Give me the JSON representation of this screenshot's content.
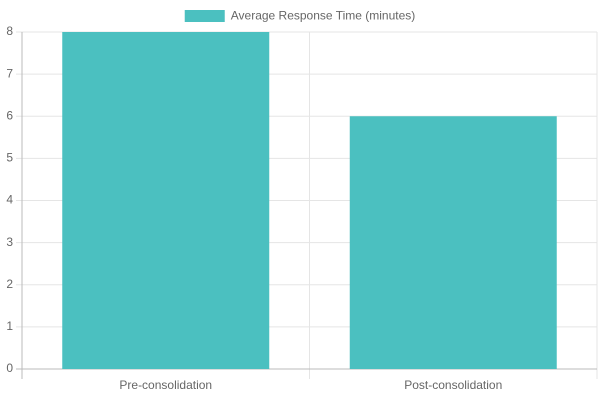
{
  "chart_data": {
    "type": "bar",
    "categories": [
      "Pre-consolidation",
      "Post-consolidation"
    ],
    "series": [
      {
        "name": "Average Response Time (minutes)",
        "color": "#4bc0c0",
        "values": [
          8,
          6
        ]
      }
    ],
    "ylim": [
      0,
      8
    ],
    "yticks": [
      0,
      1,
      2,
      3,
      4,
      5,
      6,
      7,
      8
    ],
    "grid": true,
    "legend": "top"
  }
}
